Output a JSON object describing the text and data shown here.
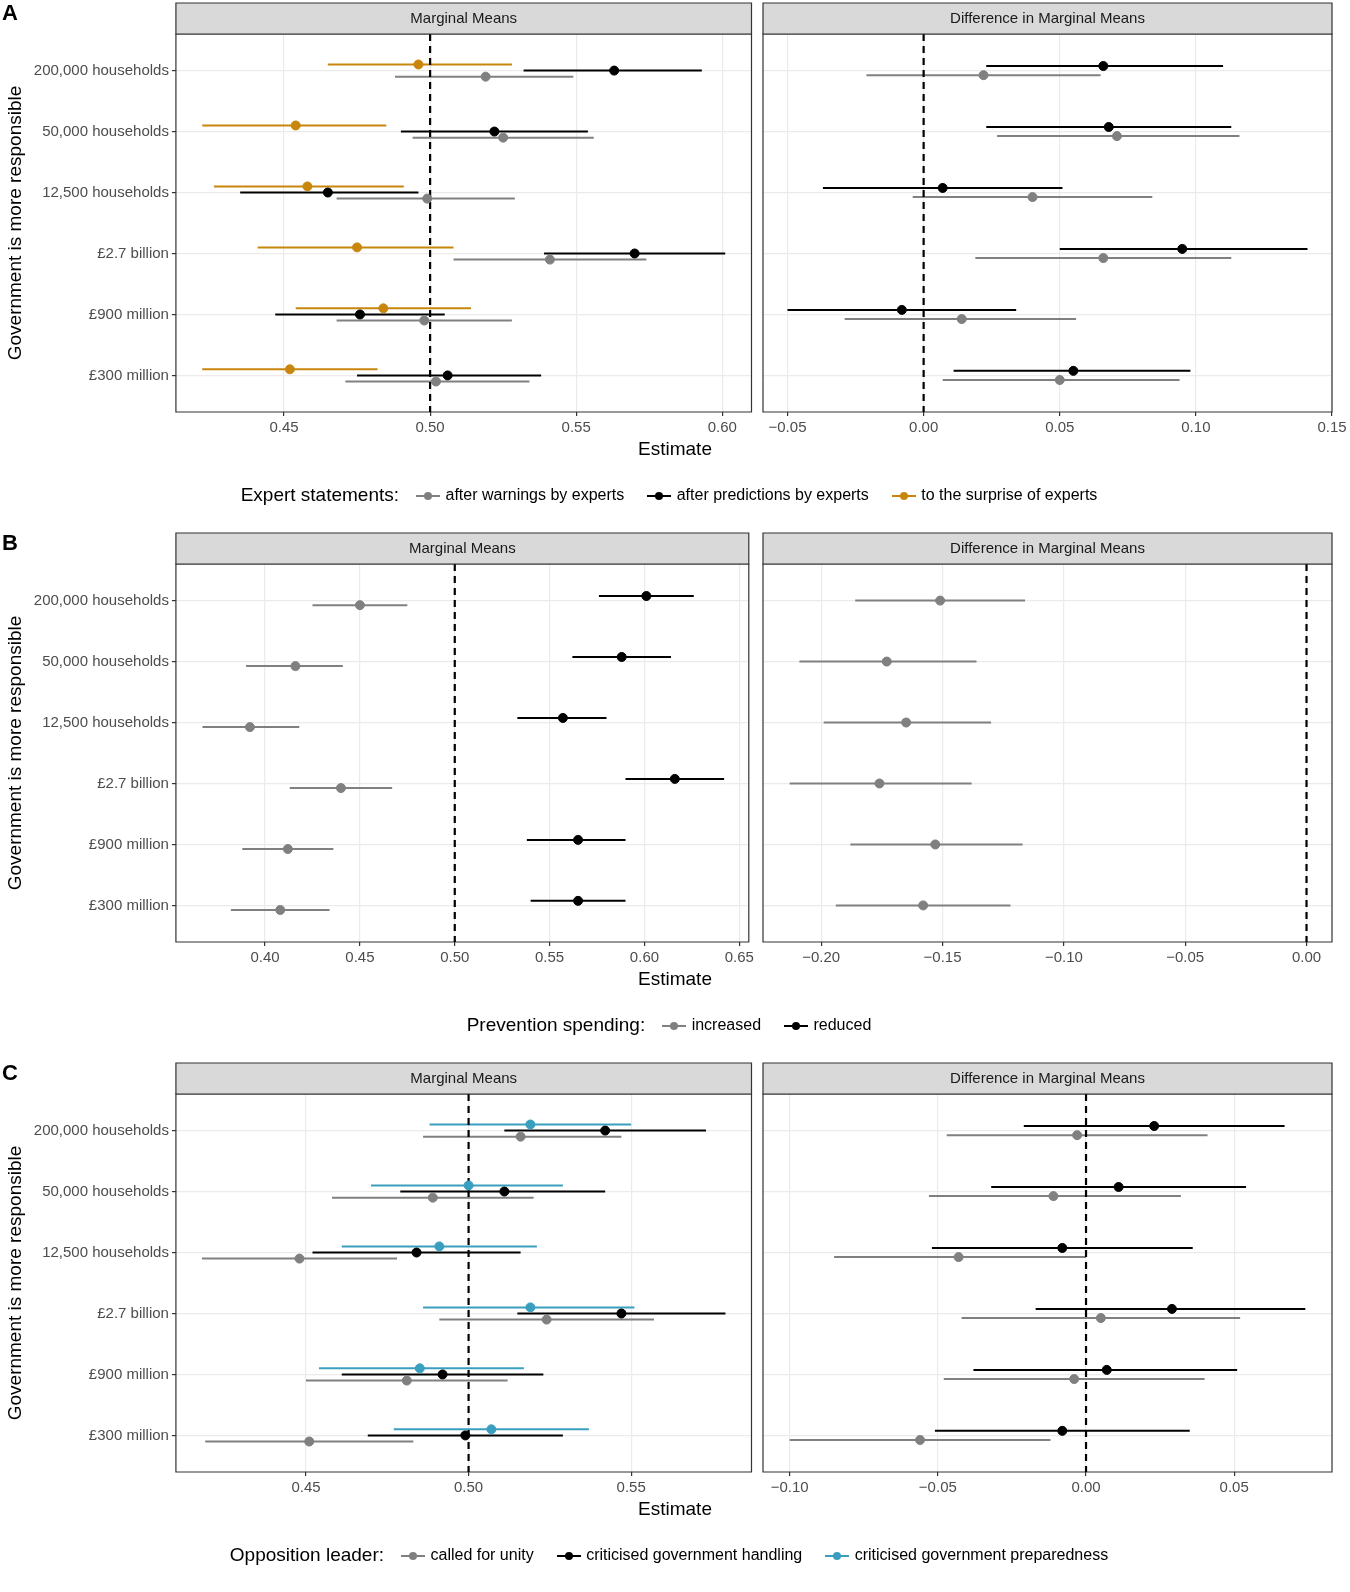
{
  "chart_data": [
    {
      "type": "scatter",
      "orientation": "horizontal",
      "title": "Marginal Means",
      "xlabel": "Estimate",
      "ylabel": "Government is more responsible",
      "annotations": [
        "A"
      ],
      "legend": "bottom",
      "legend_title": "Expert statements:",
      "grid": true,
      "marker": "circle",
      "categories": [
        "200,000 households",
        "50,000 households",
        "12,500 households",
        "£2.7 billion",
        "£900 million",
        "£300 million"
      ],
      "xlim": [
        0.413,
        0.61
      ],
      "xticks": [
        {
          "value": 0.45,
          "label": "0.45"
        },
        {
          "value": 0.5,
          "label": "0.50"
        },
        {
          "value": 0.55,
          "label": "0.55"
        },
        {
          "value": 0.6,
          "label": "0.60"
        }
      ],
      "ref_lines": [
        {
          "axis": "x",
          "value": 0.5,
          "line_style": "dashed",
          "color": "#000000"
        }
      ],
      "series": [
        {
          "name": "after warnings by experts",
          "color": "#808080",
          "values": [
            0.519,
            0.525,
            0.499,
            0.541,
            0.498,
            0.502
          ],
          "errors": [
            [
              0.488,
              0.549
            ],
            [
              0.494,
              0.556
            ],
            [
              0.468,
              0.529
            ],
            [
              0.508,
              0.574
            ],
            [
              0.468,
              0.528
            ],
            [
              0.471,
              0.534
            ]
          ]
        },
        {
          "name": "after predictions by experts",
          "color": "#000000",
          "values": [
            0.563,
            0.522,
            0.465,
            0.57,
            0.476,
            0.506
          ],
          "errors": [
            [
              0.532,
              0.593
            ],
            [
              0.49,
              0.554
            ],
            [
              0.435,
              0.496
            ],
            [
              0.539,
              0.601
            ],
            [
              0.447,
              0.505
            ],
            [
              0.475,
              0.538
            ]
          ]
        },
        {
          "name": "to the surprise of experts",
          "color": "#c8860c",
          "values": [
            0.496,
            0.454,
            0.458,
            0.475,
            0.484,
            0.452
          ],
          "errors": [
            [
              0.465,
              0.528
            ],
            [
              0.422,
              0.485
            ],
            [
              0.426,
              0.491
            ],
            [
              0.441,
              0.508
            ],
            [
              0.454,
              0.514
            ],
            [
              0.422,
              0.482
            ]
          ]
        }
      ]
    },
    {
      "type": "scatter",
      "orientation": "horizontal",
      "title": "Difference in Marginal Means",
      "grid": true,
      "marker": "circle",
      "categories": [
        null,
        null,
        null,
        null,
        null,
        null
      ],
      "xlim": [
        -0.059,
        0.15
      ],
      "xticks": [
        {
          "value": -0.05,
          "label": "−0.05"
        },
        {
          "value": 0,
          "label": "0.00"
        },
        {
          "value": 0.05,
          "label": "0.05"
        },
        {
          "value": 0.1,
          "label": "0.10"
        },
        {
          "value": 0.15,
          "label": "0.15"
        }
      ],
      "ref_lines": [
        {
          "axis": "x",
          "value": 0,
          "line_style": "dashed",
          "color": "#000000"
        }
      ],
      "series": [
        {
          "color": "#808080",
          "values": [
            0.022,
            0.071,
            0.04,
            0.066,
            0.014,
            0.05
          ],
          "errors": [
            [
              -0.021,
              0.065
            ],
            [
              0.027,
              0.116
            ],
            [
              -0.004,
              0.084
            ],
            [
              0.019,
              0.113
            ],
            [
              -0.029,
              0.056
            ],
            [
              0.007,
              0.094
            ]
          ]
        },
        {
          "color": "#000000",
          "values": [
            0.066,
            0.068,
            0.007,
            0.095,
            -0.008,
            0.055
          ],
          "errors": [
            [
              0.023,
              0.11
            ],
            [
              0.023,
              0.113
            ],
            [
              -0.037,
              0.051
            ],
            [
              0.05,
              0.141
            ],
            [
              -0.05,
              0.034
            ],
            [
              0.011,
              0.098
            ]
          ]
        }
      ]
    },
    {
      "type": "scatter",
      "orientation": "horizontal",
      "title": "Marginal Means",
      "xlabel": "Estimate",
      "ylabel": "Government is more responsible",
      "annotations": [
        "B"
      ],
      "legend": "bottom",
      "legend_title": "Prevention spending:",
      "grid": true,
      "marker": "circle",
      "categories": [
        "200,000 households",
        "50,000 households",
        "12,500 households",
        "£2.7 billion",
        "£900 million",
        "£300 million"
      ],
      "xlim": [
        0.353,
        0.655
      ],
      "xticks": [
        {
          "value": 0.4,
          "label": "0.40"
        },
        {
          "value": 0.45,
          "label": "0.45"
        },
        {
          "value": 0.5,
          "label": "0.50"
        },
        {
          "value": 0.55,
          "label": "0.55"
        },
        {
          "value": 0.6,
          "label": "0.60"
        },
        {
          "value": 0.65,
          "label": "0.65"
        }
      ],
      "ref_lines": [
        {
          "axis": "x",
          "value": 0.5,
          "line_style": "dashed",
          "color": "#000000"
        }
      ],
      "series": [
        {
          "name": "increased",
          "color": "#808080",
          "values": [
            0.45,
            0.416,
            0.392,
            0.44,
            0.412,
            0.408
          ],
          "errors": [
            [
              0.425,
              0.475
            ],
            [
              0.39,
              0.441
            ],
            [
              0.367,
              0.418
            ],
            [
              0.413,
              0.467
            ],
            [
              0.388,
              0.436
            ],
            [
              0.382,
              0.434
            ]
          ]
        },
        {
          "name": "reduced",
          "color": "#000000",
          "values": [
            0.601,
            0.588,
            0.557,
            0.616,
            0.565,
            0.565
          ],
          "errors": [
            [
              0.576,
              0.626
            ],
            [
              0.562,
              0.614
            ],
            [
              0.533,
              0.58
            ],
            [
              0.59,
              0.642
            ],
            [
              0.538,
              0.59
            ],
            [
              0.54,
              0.59
            ]
          ]
        }
      ]
    },
    {
      "type": "scatter",
      "orientation": "horizontal",
      "title": "Difference in Marginal Means",
      "grid": true,
      "marker": "circle",
      "categories": [
        null,
        null,
        null,
        null,
        null,
        null
      ],
      "xlim": [
        -0.224,
        0.0105
      ],
      "xticks": [
        {
          "value": -0.2,
          "label": "−0.20"
        },
        {
          "value": -0.15,
          "label": "−0.15"
        },
        {
          "value": -0.1,
          "label": "−0.10"
        },
        {
          "value": -0.05,
          "label": "−0.05"
        },
        {
          "value": 0,
          "label": "0.00"
        }
      ],
      "ref_lines": [
        {
          "axis": "x",
          "value": 0,
          "line_style": "dashed",
          "color": "#000000"
        }
      ],
      "series": [
        {
          "color": "#808080",
          "values": [
            -0.151,
            -0.173,
            -0.165,
            -0.176,
            -0.153,
            -0.158
          ],
          "errors": [
            [
              -0.186,
              -0.116
            ],
            [
              -0.209,
              -0.136
            ],
            [
              -0.199,
              -0.13
            ],
            [
              -0.213,
              -0.138
            ],
            [
              -0.188,
              -0.117
            ],
            [
              -0.194,
              -0.122
            ]
          ]
        }
      ]
    },
    {
      "type": "scatter",
      "orientation": "horizontal",
      "title": "Marginal Means",
      "xlabel": "Estimate",
      "ylabel": "Government is more responsible",
      "annotations": [
        "C"
      ],
      "legend": "bottom",
      "legend_title": "Opposition leader:",
      "grid": true,
      "marker": "circle",
      "categories": [
        "200,000 households",
        "50,000 households",
        "12,500 households",
        "£2.7 billion",
        "£900 million",
        "£300 million"
      ],
      "xlim": [
        0.41,
        0.587
      ],
      "xticks": [
        {
          "value": 0.45,
          "label": "0.45"
        },
        {
          "value": 0.5,
          "label": "0.50"
        },
        {
          "value": 0.55,
          "label": "0.55"
        }
      ],
      "ref_lines": [
        {
          "axis": "x",
          "value": 0.5,
          "line_style": "dashed",
          "color": "#000000"
        }
      ],
      "series": [
        {
          "name": "called for unity",
          "color": "#808080",
          "values": [
            0.516,
            0.489,
            0.448,
            0.524,
            0.481,
            0.451
          ],
          "errors": [
            [
              0.486,
              0.547
            ],
            [
              0.458,
              0.52
            ],
            [
              0.418,
              0.478
            ],
            [
              0.491,
              0.557
            ],
            [
              0.45,
              0.512
            ],
            [
              0.419,
              0.483
            ]
          ]
        },
        {
          "name": "criticised government handling",
          "color": "#000000",
          "values": [
            0.542,
            0.511,
            0.484,
            0.547,
            0.492,
            0.499
          ],
          "errors": [
            [
              0.511,
              0.573
            ],
            [
              0.479,
              0.542
            ],
            [
              0.452,
              0.516
            ],
            [
              0.515,
              0.579
            ],
            [
              0.461,
              0.523
            ],
            [
              0.469,
              0.529
            ]
          ]
        },
        {
          "name": "criticised government preparedness",
          "color": "#3a9fbf",
          "values": [
            0.519,
            0.5,
            0.491,
            0.519,
            0.485,
            0.507
          ],
          "errors": [
            [
              0.488,
              0.55
            ],
            [
              0.47,
              0.529
            ],
            [
              0.461,
              0.521
            ],
            [
              0.486,
              0.551
            ],
            [
              0.454,
              0.517
            ],
            [
              0.477,
              0.537
            ]
          ]
        }
      ]
    },
    {
      "type": "scatter",
      "orientation": "horizontal",
      "title": "Difference in Marginal Means",
      "grid": true,
      "marker": "circle",
      "categories": [
        null,
        null,
        null,
        null,
        null,
        null
      ],
      "xlim": [
        -0.109,
        0.083
      ],
      "xticks": [
        {
          "value": -0.1,
          "label": "−0.10"
        },
        {
          "value": -0.05,
          "label": "−0.05"
        },
        {
          "value": 0,
          "label": "0.00"
        },
        {
          "value": 0.05,
          "label": "0.05"
        }
      ],
      "ref_lines": [
        {
          "axis": "x",
          "value": 0,
          "line_style": "dashed",
          "color": "#000000"
        }
      ],
      "series": [
        {
          "color": "#808080",
          "values": [
            -0.003,
            -0.011,
            -0.043,
            0.005,
            -0.004,
            -0.056
          ],
          "errors": [
            [
              -0.047,
              0.041
            ],
            [
              -0.053,
              0.032
            ],
            [
              -0.085,
              0.0
            ],
            [
              -0.042,
              0.052
            ],
            [
              -0.048,
              0.04
            ],
            [
              -0.1,
              -0.012
            ]
          ]
        },
        {
          "color": "#000000",
          "values": [
            0.023,
            0.011,
            -0.008,
            0.029,
            0.007,
            -0.008
          ],
          "errors": [
            [
              -0.021,
              0.067
            ],
            [
              -0.032,
              0.054
            ],
            [
              -0.052,
              0.036
            ],
            [
              -0.017,
              0.074
            ],
            [
              -0.038,
              0.051
            ],
            [
              -0.051,
              0.035
            ]
          ]
        }
      ]
    }
  ]
}
